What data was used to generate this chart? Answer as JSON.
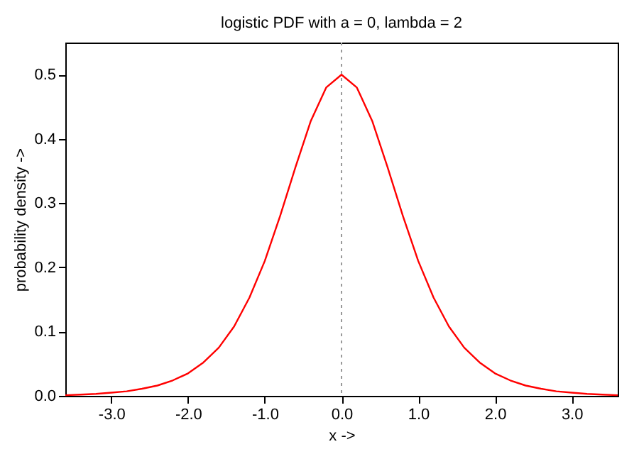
{
  "chart_data": {
    "type": "line",
    "title": "logistic PDF with a = 0, lambda = 2",
    "xlabel": "x ->",
    "ylabel": "probability density ->",
    "x": [
      -3.6,
      -3.4,
      -3.2,
      -3.0,
      -2.8,
      -2.6,
      -2.4,
      -2.2,
      -2.0,
      -1.8,
      -1.6,
      -1.4,
      -1.2,
      -1.0,
      -0.8,
      -0.6,
      -0.4,
      -0.2,
      0.0,
      0.2,
      0.4,
      0.6,
      0.8,
      1.0,
      1.2,
      1.4,
      1.6,
      1.8,
      2.0,
      2.2,
      2.4,
      2.6,
      2.8,
      3.0,
      3.2,
      3.4,
      3.6
    ],
    "series": [
      {
        "color": "#ff0000",
        "values": [
          0.001,
          0.002,
          0.003,
          0.005,
          0.007,
          0.011,
          0.016,
          0.024,
          0.035,
          0.052,
          0.075,
          0.108,
          0.153,
          0.21,
          0.28,
          0.356,
          0.428,
          0.48,
          0.5,
          0.48,
          0.428,
          0.356,
          0.28,
          0.21,
          0.153,
          0.108,
          0.075,
          0.052,
          0.035,
          0.024,
          0.016,
          0.011,
          0.007,
          0.005,
          0.003,
          0.002,
          0.001
        ]
      }
    ],
    "xlim": [
      -3.6,
      3.6
    ],
    "xticks": [
      {
        "value": -3,
        "label": "-3.0"
      },
      {
        "value": -2,
        "label": "-2.0"
      },
      {
        "value": -1,
        "label": "-1.0"
      },
      {
        "value": 0,
        "label": "0.0"
      },
      {
        "value": 1,
        "label": "1.0"
      },
      {
        "value": 2,
        "label": "2.0"
      },
      {
        "value": 3,
        "label": "3.0"
      }
    ],
    "ylim": [
      0,
      0.55
    ],
    "yticks": [
      {
        "value": 0,
        "label": "0.0"
      },
      {
        "value": 0.1,
        "label": "0.1"
      },
      {
        "value": 0.2,
        "label": "0.2"
      },
      {
        "value": 0.3,
        "label": "0.3"
      },
      {
        "value": 0.4,
        "label": "0.4"
      },
      {
        "value": 0.5,
        "label": "0.5"
      }
    ],
    "ref_lines": [
      {
        "axis": "x",
        "value": 0,
        "color": "#999999",
        "line_style": "dotted"
      }
    ],
    "grid": false,
    "marker": "none",
    "line_style": "solid"
  }
}
